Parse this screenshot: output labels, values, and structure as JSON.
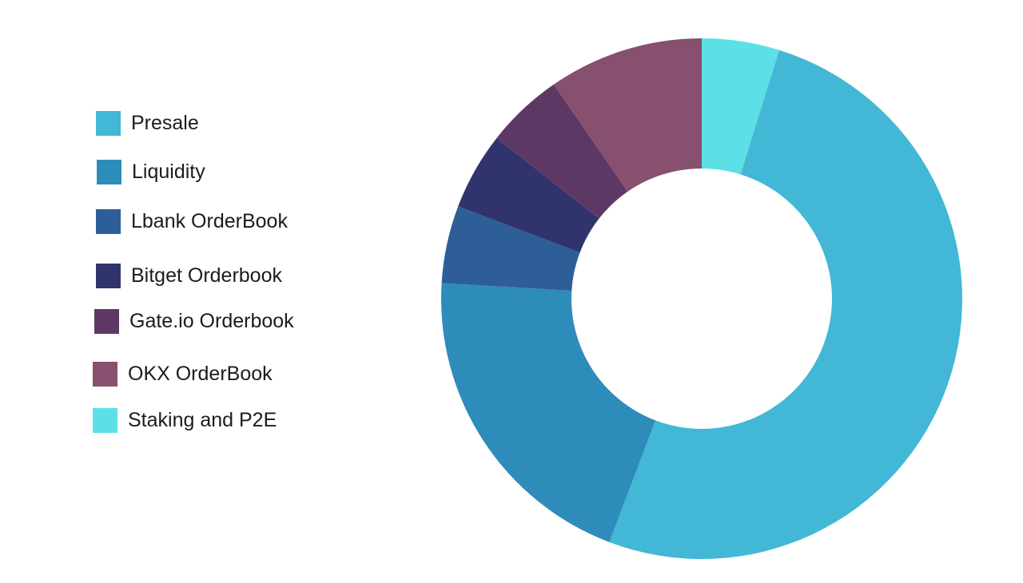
{
  "chart_data": {
    "type": "pie",
    "style": "donut",
    "title": "",
    "legend_position": "left",
    "start_angle_deg": 0,
    "direction": "clockwise",
    "slices": [
      {
        "label": "Staking and P2E",
        "value": 5,
        "color": "#5ce0e6"
      },
      {
        "label": "Presale",
        "value": 53,
        "color": "#43b7d6"
      },
      {
        "label": "Liquidity",
        "value": 21,
        "color": "#2e8cba"
      },
      {
        "label": "Lbank OrderBook",
        "value": 5,
        "color": "#2e5e97"
      },
      {
        "label": "Bitget Orderbook",
        "value": 5,
        "color": "#31346c"
      },
      {
        "label": "Gate.io Orderbook",
        "value": 5,
        "color": "#5e3865"
      },
      {
        "label": "OKX OrderBook",
        "value": 10,
        "color": "#87506e"
      }
    ]
  },
  "legend": {
    "items": [
      {
        "label": "Presale",
        "color": "#43b7d6"
      },
      {
        "label": "Liquidity",
        "color": "#2e8cba"
      },
      {
        "label": "Lbank OrderBook",
        "color": "#2e5e97"
      },
      {
        "label": "Bitget Orderbook",
        "color": "#31346c"
      },
      {
        "label": "Gate.io Orderbook",
        "color": "#5e3865"
      },
      {
        "label": "OKX OrderBook",
        "color": "#87506e"
      },
      {
        "label": "Staking and P2E",
        "color": "#5ce0e6"
      }
    ]
  }
}
